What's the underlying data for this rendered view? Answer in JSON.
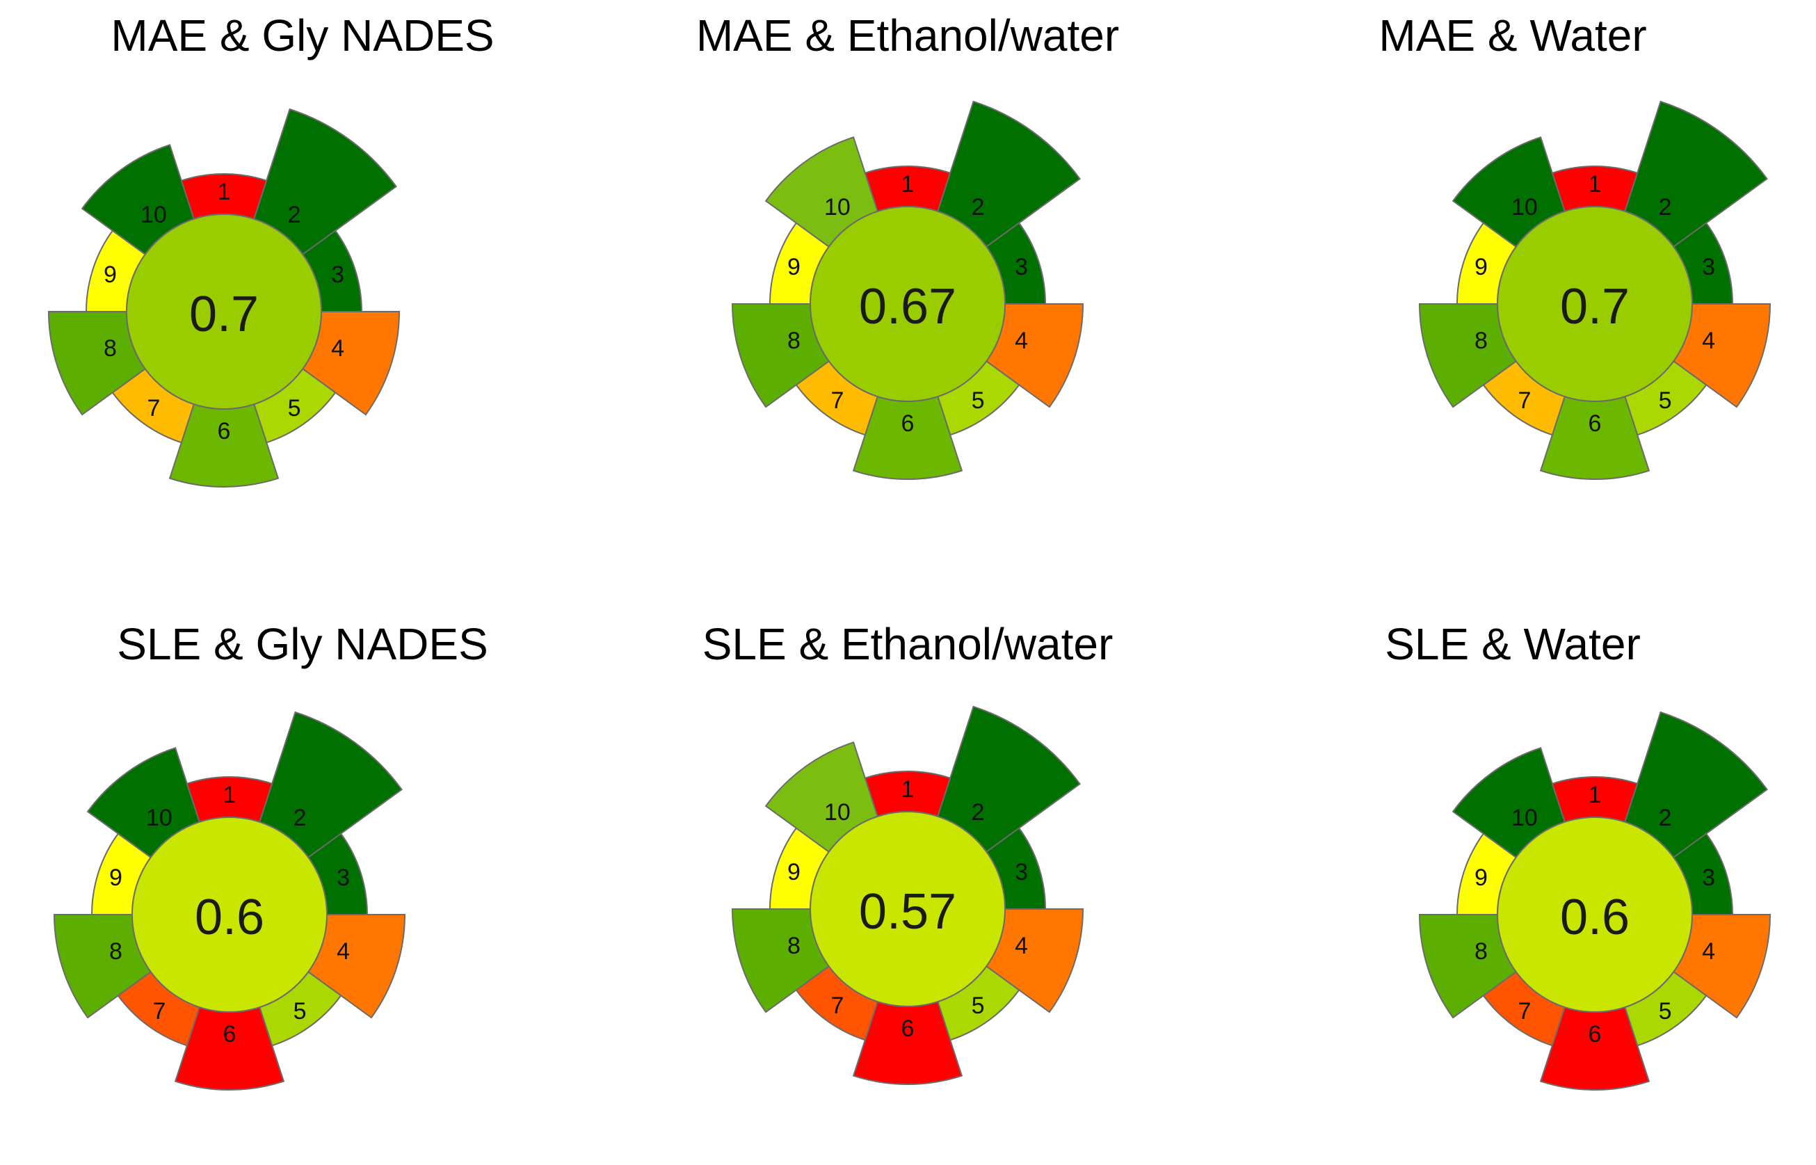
{
  "chart_data": [
    {
      "type": "radial-segment",
      "title": "MAE & Gly NADES",
      "score": "0.7",
      "center_color": "#9ACD00",
      "segments": [
        {
          "label": "1",
          "weight": 1,
          "color": "#FF0000"
        },
        {
          "label": "2",
          "weight": 3,
          "color": "#007000"
        },
        {
          "label": "3",
          "weight": 1,
          "color": "#007000"
        },
        {
          "label": "4",
          "weight": 2,
          "color": "#FF7700"
        },
        {
          "label": "5",
          "weight": 1,
          "color": "#AAD800"
        },
        {
          "label": "6",
          "weight": 2,
          "color": "#6CB700"
        },
        {
          "label": "7",
          "weight": 1,
          "color": "#FFBB00"
        },
        {
          "label": "8",
          "weight": 2,
          "color": "#5CAF00"
        },
        {
          "label": "9",
          "weight": 1,
          "color": "#FFFF00"
        },
        {
          "label": "10",
          "weight": 2,
          "color": "#007000"
        }
      ]
    },
    {
      "type": "radial-segment",
      "title": "MAE & Ethanol/water",
      "score": "0.67",
      "center_color": "#9ACD00",
      "segments": [
        {
          "label": "1",
          "weight": 1,
          "color": "#FF0000"
        },
        {
          "label": "2",
          "weight": 3,
          "color": "#007000"
        },
        {
          "label": "3",
          "weight": 1,
          "color": "#007000"
        },
        {
          "label": "4",
          "weight": 2,
          "color": "#FF7700"
        },
        {
          "label": "5",
          "weight": 1,
          "color": "#AAD800"
        },
        {
          "label": "6",
          "weight": 2,
          "color": "#6CB700"
        },
        {
          "label": "7",
          "weight": 1,
          "color": "#FFBB00"
        },
        {
          "label": "8",
          "weight": 2,
          "color": "#5CAF00"
        },
        {
          "label": "9",
          "weight": 1,
          "color": "#FFFF00"
        },
        {
          "label": "10",
          "weight": 2,
          "color": "#7BBD10"
        }
      ]
    },
    {
      "type": "radial-segment",
      "title": "MAE & Water",
      "score": "0.7",
      "center_color": "#9ACD00",
      "segments": [
        {
          "label": "1",
          "weight": 1,
          "color": "#FF0000"
        },
        {
          "label": "2",
          "weight": 3,
          "color": "#007000"
        },
        {
          "label": "3",
          "weight": 1,
          "color": "#007000"
        },
        {
          "label": "4",
          "weight": 2,
          "color": "#FF7700"
        },
        {
          "label": "5",
          "weight": 1,
          "color": "#AAD800"
        },
        {
          "label": "6",
          "weight": 2,
          "color": "#6CB700"
        },
        {
          "label": "7",
          "weight": 1,
          "color": "#FFBB00"
        },
        {
          "label": "8",
          "weight": 2,
          "color": "#5CAF00"
        },
        {
          "label": "9",
          "weight": 1,
          "color": "#FFFF00"
        },
        {
          "label": "10",
          "weight": 2,
          "color": "#007000"
        }
      ]
    },
    {
      "type": "radial-segment",
      "title": "SLE & Gly NADES",
      "score": "0.6",
      "center_color": "#C8E600",
      "segments": [
        {
          "label": "1",
          "weight": 1,
          "color": "#FF0000"
        },
        {
          "label": "2",
          "weight": 3,
          "color": "#007000"
        },
        {
          "label": "3",
          "weight": 1,
          "color": "#007000"
        },
        {
          "label": "4",
          "weight": 2,
          "color": "#FF7700"
        },
        {
          "label": "5",
          "weight": 1,
          "color": "#AAD800"
        },
        {
          "label": "6",
          "weight": 2,
          "color": "#FF0000"
        },
        {
          "label": "7",
          "weight": 1,
          "color": "#FF5500"
        },
        {
          "label": "8",
          "weight": 2,
          "color": "#5CAF00"
        },
        {
          "label": "9",
          "weight": 1,
          "color": "#FFFF00"
        },
        {
          "label": "10",
          "weight": 2,
          "color": "#007000"
        }
      ]
    },
    {
      "type": "radial-segment",
      "title": "SLE & Ethanol/water",
      "score": "0.57",
      "center_color": "#C8E600",
      "segments": [
        {
          "label": "1",
          "weight": 1,
          "color": "#FF0000"
        },
        {
          "label": "2",
          "weight": 3,
          "color": "#007000"
        },
        {
          "label": "3",
          "weight": 1,
          "color": "#007000"
        },
        {
          "label": "4",
          "weight": 2,
          "color": "#FF7700"
        },
        {
          "label": "5",
          "weight": 1,
          "color": "#AAD800"
        },
        {
          "label": "6",
          "weight": 2,
          "color": "#FF0000"
        },
        {
          "label": "7",
          "weight": 1,
          "color": "#FF5500"
        },
        {
          "label": "8",
          "weight": 2,
          "color": "#5CAF00"
        },
        {
          "label": "9",
          "weight": 1,
          "color": "#FFFF00"
        },
        {
          "label": "10",
          "weight": 2,
          "color": "#7BBD10"
        }
      ]
    },
    {
      "type": "radial-segment",
      "title": "SLE & Water",
      "score": "0.6",
      "center_color": "#C8E600",
      "segments": [
        {
          "label": "1",
          "weight": 1,
          "color": "#FF0000"
        },
        {
          "label": "2",
          "weight": 3,
          "color": "#007000"
        },
        {
          "label": "3",
          "weight": 1,
          "color": "#007000"
        },
        {
          "label": "4",
          "weight": 2,
          "color": "#FF7700"
        },
        {
          "label": "5",
          "weight": 1,
          "color": "#AAD800"
        },
        {
          "label": "6",
          "weight": 2,
          "color": "#FF0000"
        },
        {
          "label": "7",
          "weight": 1,
          "color": "#FF5500"
        },
        {
          "label": "8",
          "weight": 2,
          "color": "#5CAF00"
        },
        {
          "label": "9",
          "weight": 1,
          "color": "#FFFF00"
        },
        {
          "label": "10",
          "weight": 2,
          "color": "#007000"
        }
      ]
    }
  ]
}
